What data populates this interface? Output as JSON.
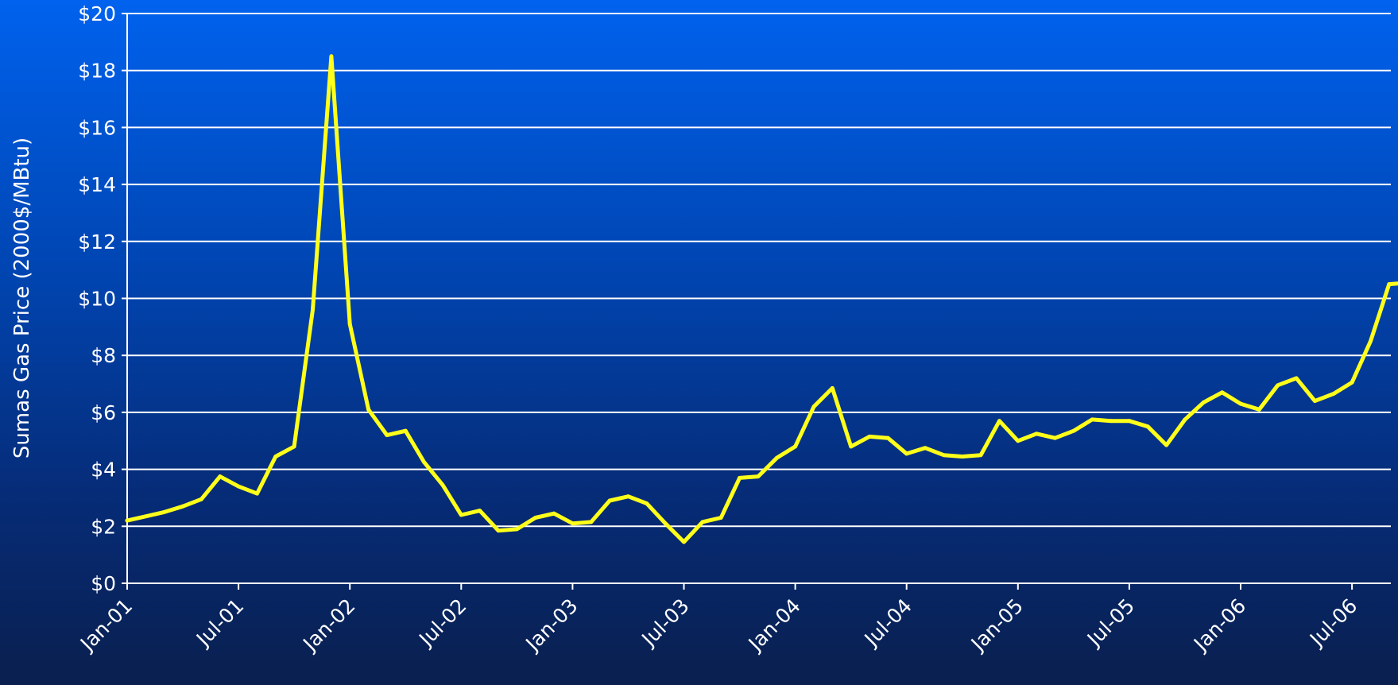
{
  "chart_data": {
    "type": "line",
    "title": "",
    "xlabel": "",
    "ylabel": "Sumas Gas Price  (2000$/MBtu)",
    "ylim": [
      0,
      20
    ],
    "y_ticks": [
      "$0",
      "$2",
      "$4",
      "$6",
      "$8",
      "$10",
      "$12",
      "$14",
      "$16",
      "$18",
      "$20"
    ],
    "x_tick_labels": [
      "Jan-01",
      "Jul-01",
      "Jan-02",
      "Jul-02",
      "Jan-03",
      "Jul-03",
      "Jan-04",
      "Jul-04",
      "Jan-05",
      "Jul-05",
      "Jan-06",
      "Jul-06"
    ],
    "grid": true,
    "legend": "none",
    "colors": {
      "line": "#ffff1a",
      "grid": "#ffffff",
      "axis": "#ffffff",
      "text": "#ffffff"
    },
    "series": [
      {
        "x": [
          "Jan-01",
          "Feb-01",
          "Mar-01",
          "Apr-01",
          "May-01",
          "Jun-01",
          "Jul-01",
          "Aug-01",
          "Sep-01",
          "Oct-01",
          "Nov-01",
          "Dec-01",
          "Jan-02",
          "Feb-02",
          "Mar-02",
          "Apr-02",
          "May-02",
          "Jun-02",
          "Jul-02",
          "Aug-02",
          "Sep-02",
          "Oct-02",
          "Nov-02",
          "Dec-02",
          "Jan-03",
          "Feb-03",
          "Mar-03",
          "Apr-03",
          "May-03",
          "Jun-03",
          "Jul-03",
          "Aug-03",
          "Sep-03",
          "Oct-03",
          "Nov-03",
          "Dec-03",
          "Jan-04",
          "Feb-04",
          "Mar-04",
          "Apr-04",
          "May-04",
          "Jun-04",
          "Jul-04",
          "Aug-04",
          "Sep-04",
          "Oct-04",
          "Nov-04",
          "Dec-04",
          "Jan-05",
          "Feb-05",
          "Mar-05",
          "Apr-05",
          "May-05",
          "Jun-05",
          "Jul-05",
          "Aug-05",
          "Sep-05",
          "Oct-05",
          "Nov-05",
          "Dec-05",
          "Jan-06",
          "Feb-06",
          "Mar-06",
          "Apr-06",
          "May-06",
          "Jun-06",
          "Jul-06",
          "Aug-06",
          "Sep-06",
          "Oct-06"
        ],
        "values": [
          2.2,
          2.35,
          2.5,
          2.7,
          2.95,
          3.75,
          3.4,
          3.15,
          4.45,
          4.8,
          9.6,
          18.5,
          9.1,
          6.1,
          5.2,
          5.35,
          4.25,
          3.45,
          2.4,
          2.55,
          1.85,
          1.9,
          2.3,
          2.45,
          2.1,
          2.15,
          2.9,
          3.05,
          2.8,
          2.1,
          1.45,
          2.15,
          2.3,
          3.7,
          3.75,
          4.4,
          4.8,
          6.2,
          6.85,
          4.8,
          5.15,
          5.1,
          4.55,
          4.75,
          4.5,
          4.45,
          4.5,
          5.7,
          5.0,
          5.25,
          5.1,
          5.35,
          5.75,
          5.7,
          5.7,
          5.5,
          4.85,
          5.75,
          6.35,
          6.7,
          6.3,
          6.1,
          6.95,
          7.2,
          6.4,
          6.65,
          7.05,
          8.5,
          10.5,
          10.55
        ]
      }
    ]
  }
}
